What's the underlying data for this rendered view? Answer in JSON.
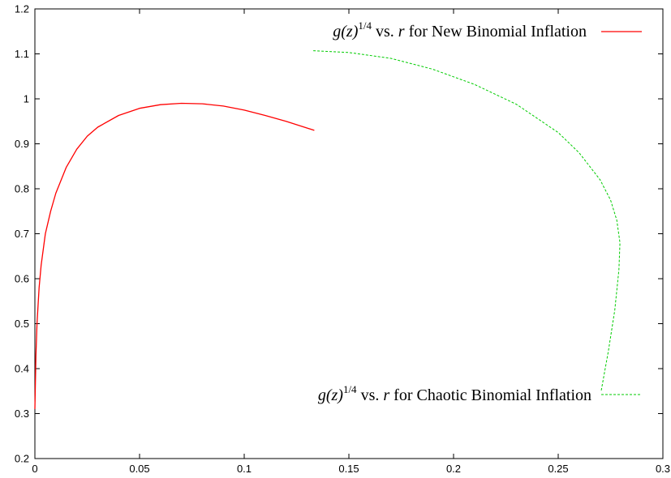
{
  "chart_data": {
    "type": "line",
    "title": "",
    "xlabel": "",
    "ylabel": "",
    "xlim": [
      0,
      0.3
    ],
    "ylim": [
      0.2,
      1.2
    ],
    "x_ticks": [
      "0",
      "0.05",
      "0.1",
      "0.15",
      "0.2",
      "0.25",
      "0.3"
    ],
    "y_ticks": [
      "0.2",
      "0.3",
      "0.4",
      "0.5",
      "0.6",
      "0.7",
      "0.8",
      "0.9",
      "1",
      "1.1",
      "1.2"
    ],
    "x_tick_values": [
      0,
      0.05,
      0.1,
      0.15,
      0.2,
      0.25,
      0.3
    ],
    "y_tick_values": [
      0.2,
      0.3,
      0.4,
      0.5,
      0.6,
      0.7,
      0.8,
      0.9,
      1.0,
      1.1,
      1.2
    ],
    "grid": false,
    "legend_position": "inline",
    "series": [
      {
        "label_prefix": "g(z)",
        "label_exponent": "1/4",
        "label_mid": " vs. ",
        "label_var": "r",
        "label_suffix": " for New Binomial Inflation",
        "color": "#ff0000",
        "dash": "solid",
        "x": [
          0.0,
          0.0005,
          0.001,
          0.002,
          0.003,
          0.005,
          0.0075,
          0.01,
          0.015,
          0.02,
          0.025,
          0.03,
          0.04,
          0.05,
          0.06,
          0.07,
          0.08,
          0.09,
          0.1,
          0.11,
          0.12,
          0.1335
        ],
        "y": [
          0.31,
          0.43,
          0.5,
          0.58,
          0.63,
          0.7,
          0.75,
          0.79,
          0.848,
          0.888,
          0.917,
          0.937,
          0.963,
          0.979,
          0.987,
          0.99,
          0.989,
          0.984,
          0.975,
          0.963,
          0.95,
          0.93
        ]
      },
      {
        "label_prefix": "g(z)",
        "label_exponent": "1/4",
        "label_mid": " vs. ",
        "label_var": "r",
        "label_suffix": " for Chaotic Binomial Inflation",
        "color": "#00cc00",
        "dash": "dashed",
        "x": [
          0.133,
          0.15,
          0.17,
          0.19,
          0.21,
          0.23,
          0.25,
          0.26,
          0.27,
          0.275,
          0.278,
          0.2795,
          0.279,
          0.277,
          0.274,
          0.2705
        ],
        "y": [
          1.107,
          1.103,
          1.09,
          1.066,
          1.032,
          0.988,
          0.925,
          0.88,
          0.82,
          0.775,
          0.73,
          0.68,
          0.62,
          0.53,
          0.44,
          0.35
        ]
      }
    ]
  }
}
